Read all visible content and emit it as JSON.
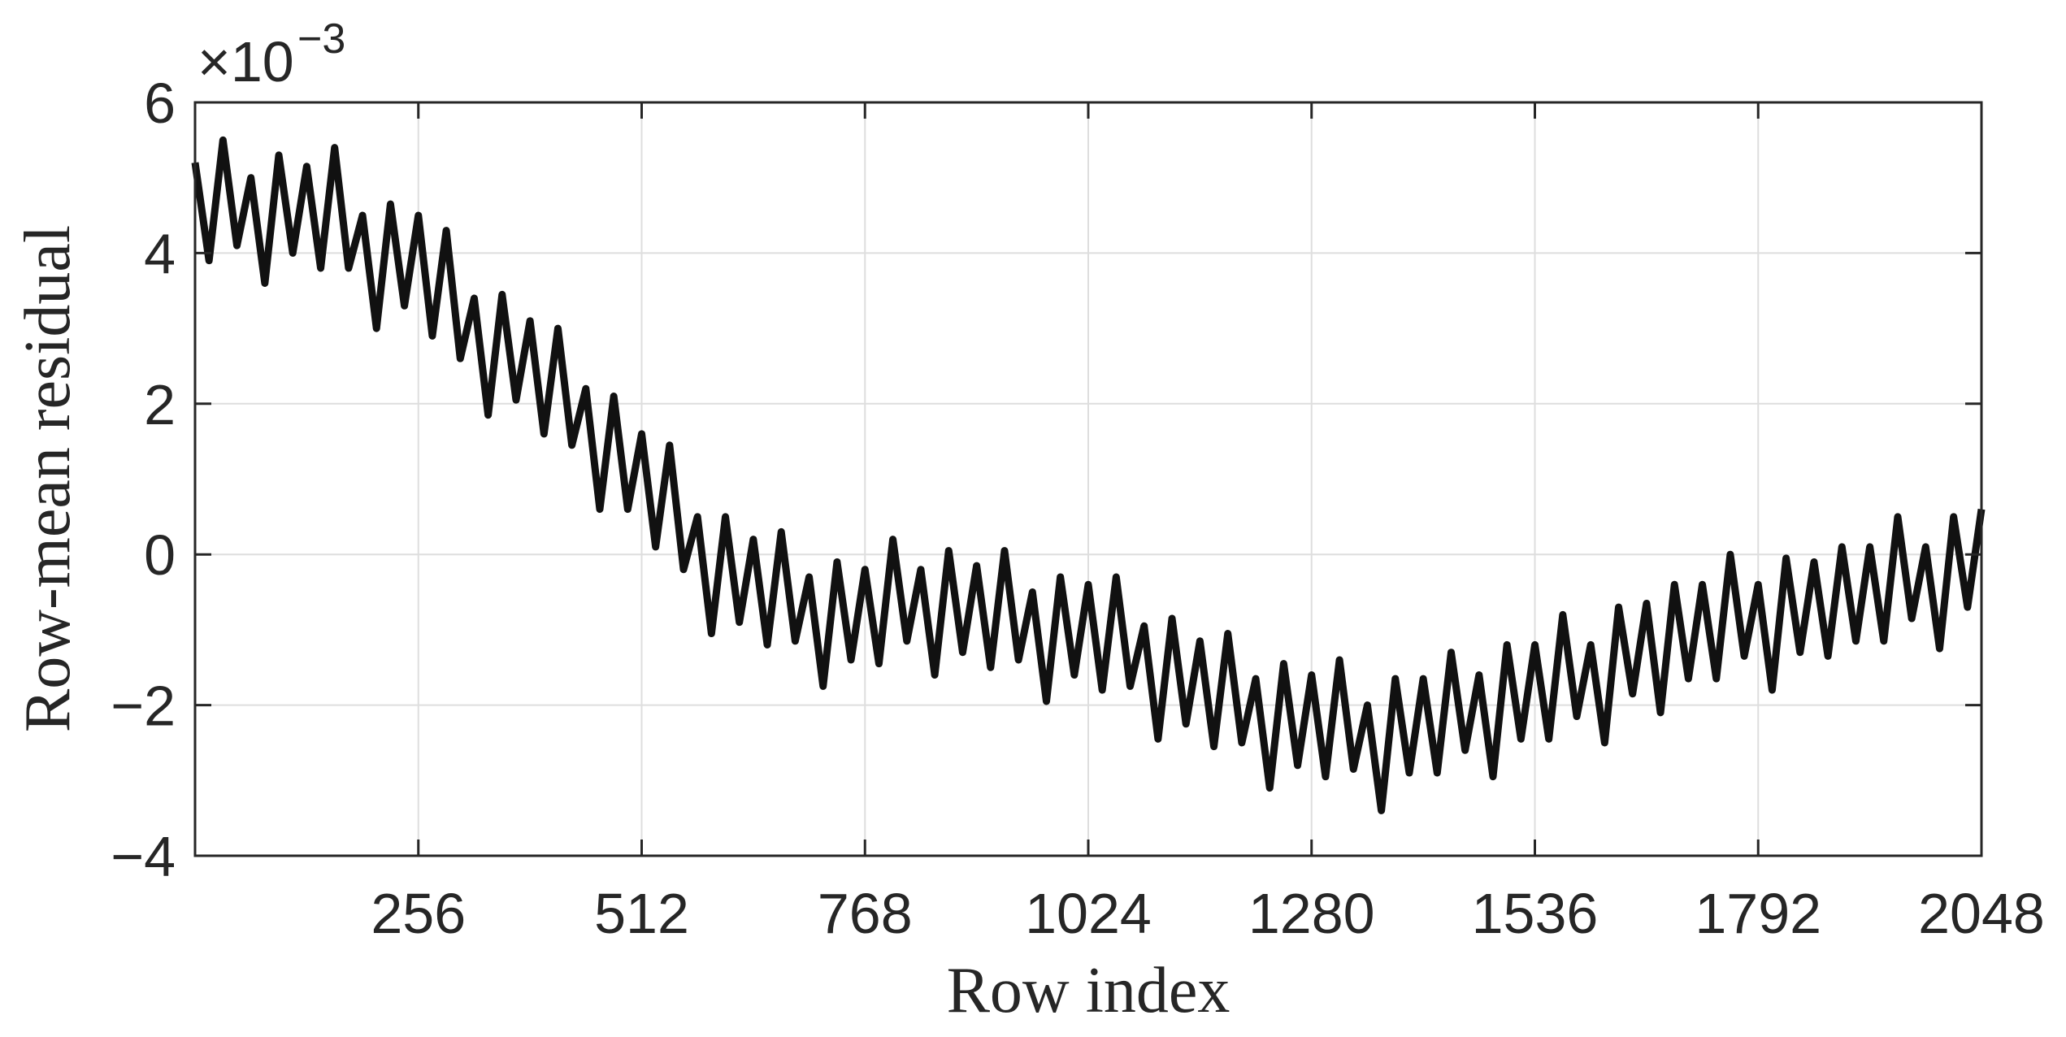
{
  "chart_data": {
    "type": "line",
    "x_label": "Row index",
    "y_label": "Row-mean residual",
    "y_multiplier": {
      "base": "×10",
      "exponent": "−3"
    },
    "xlim": [
      0,
      2048
    ],
    "xticks": [
      256,
      512,
      768,
      1024,
      1280,
      1536,
      1792,
      2048
    ],
    "ylim": [
      -4,
      6
    ],
    "yticks": [
      {
        "value": -4,
        "label": "−4"
      },
      {
        "value": -2,
        "label": "−2"
      },
      0,
      2,
      4,
      6
    ],
    "grid": true,
    "x": [
      0,
      16,
      32,
      48,
      64,
      80,
      96,
      112,
      128,
      144,
      160,
      176,
      192,
      208,
      224,
      240,
      256,
      272,
      288,
      304,
      320,
      336,
      352,
      368,
      384,
      400,
      416,
      432,
      448,
      464,
      480,
      496,
      512,
      528,
      544,
      560,
      576,
      592,
      608,
      624,
      640,
      656,
      672,
      688,
      704,
      720,
      736,
      752,
      768,
      784,
      800,
      816,
      832,
      848,
      864,
      880,
      896,
      912,
      928,
      944,
      960,
      976,
      992,
      1008,
      1024,
      1040,
      1056,
      1072,
      1088,
      1104,
      1120,
      1136,
      1152,
      1168,
      1184,
      1200,
      1216,
      1232,
      1248,
      1264,
      1280,
      1296,
      1312,
      1328,
      1344,
      1360,
      1376,
      1392,
      1408,
      1424,
      1440,
      1456,
      1472,
      1488,
      1504,
      1520,
      1536,
      1552,
      1568,
      1584,
      1600,
      1616,
      1632,
      1648,
      1664,
      1680,
      1696,
      1712,
      1728,
      1744,
      1760,
      1776,
      1792,
      1808,
      1824,
      1840,
      1856,
      1872,
      1888,
      1904,
      1920,
      1936,
      1952,
      1968,
      1984,
      2000,
      2016,
      2032,
      2048
    ],
    "series": [
      {
        "color": "#111111",
        "values": [
          5.2,
          3.9,
          5.5,
          4.1,
          5.0,
          3.6,
          5.3,
          4.0,
          5.15,
          3.8,
          5.4,
          3.8,
          4.5,
          3.0,
          4.65,
          3.3,
          4.5,
          2.9,
          4.3,
          2.6,
          3.4,
          1.85,
          3.45,
          2.05,
          3.1,
          1.6,
          3.0,
          1.45,
          2.2,
          0.6,
          2.1,
          0.6,
          1.6,
          0.1,
          1.45,
          -0.2,
          0.5,
          -1.05,
          0.5,
          -0.9,
          0.2,
          -1.2,
          0.3,
          -1.15,
          -0.3,
          -1.75,
          -0.1,
          -1.4,
          -0.2,
          -1.45,
          0.2,
          -1.15,
          -0.2,
          -1.6,
          0.05,
          -1.3,
          -0.15,
          -1.5,
          0.05,
          -1.4,
          -0.5,
          -1.95,
          -0.3,
          -1.6,
          -0.4,
          -1.8,
          -0.3,
          -1.75,
          -0.95,
          -2.45,
          -0.85,
          -2.25,
          -1.15,
          -2.55,
          -1.05,
          -2.5,
          -1.65,
          -3.1,
          -1.45,
          -2.8,
          -1.6,
          -2.95,
          -1.4,
          -2.85,
          -2.0,
          -3.4,
          -1.65,
          -2.9,
          -1.65,
          -2.9,
          -1.3,
          -2.6,
          -1.6,
          -2.95,
          -1.2,
          -2.45,
          -1.2,
          -2.45,
          -0.8,
          -2.15,
          -1.2,
          -2.5,
          -0.7,
          -1.85,
          -0.65,
          -2.1,
          -0.4,
          -1.65,
          -0.4,
          -1.65,
          0.0,
          -1.35,
          -0.4,
          -1.8,
          -0.05,
          -1.3,
          -0.1,
          -1.35,
          0.1,
          -1.15,
          0.1,
          -1.15,
          0.5,
          -0.85,
          0.1,
          -1.25,
          0.5,
          -0.7,
          0.6
        ]
      }
    ]
  }
}
